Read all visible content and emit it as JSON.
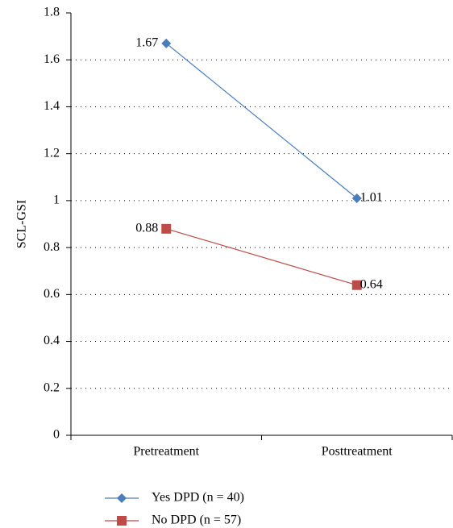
{
  "chart_data": {
    "type": "line",
    "y_label": "SCL-GSI",
    "categories": [
      "Pretreatment",
      "Posttreatment"
    ],
    "series": [
      {
        "name": "Yes DPD (n = 40)",
        "color": "#4a7ebb",
        "marker": "diamond",
        "values": [
          1.67,
          1.01
        ]
      },
      {
        "name": "No DPD (n = 57)",
        "color": "#be4b48",
        "marker": "square",
        "values": [
          0.88,
          0.64
        ]
      }
    ],
    "ylim": [
      0,
      1.8
    ],
    "yticks": [
      0,
      0.2,
      0.4,
      0.6,
      0.8,
      1,
      1.2,
      1.4,
      1.6,
      1.8
    ],
    "grid": true,
    "legend": "bottom-left"
  }
}
